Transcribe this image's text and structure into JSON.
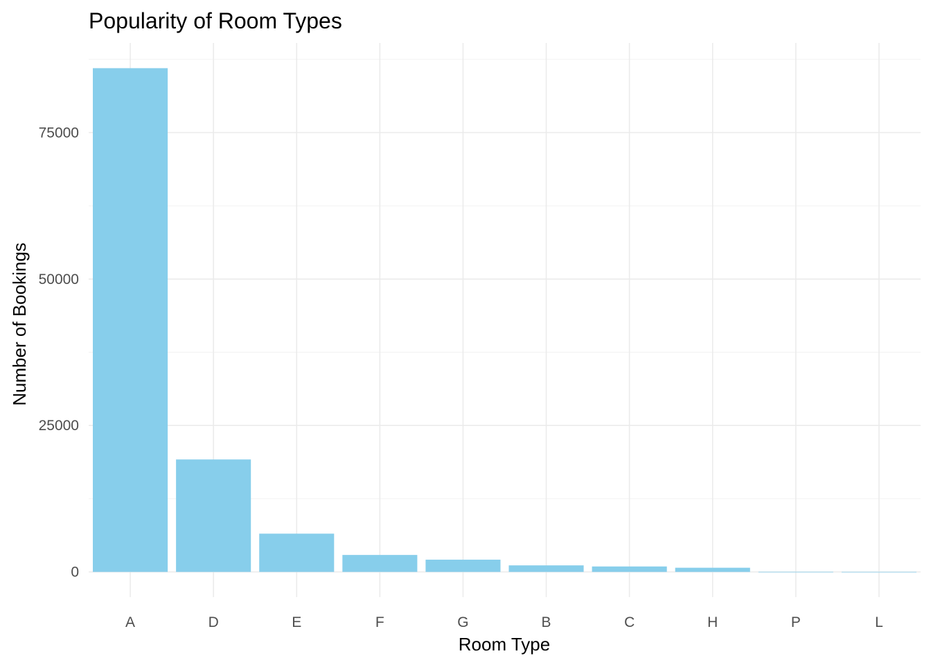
{
  "chart_data": {
    "type": "bar",
    "title": "Popularity of Room Types",
    "xlabel": "Room Type",
    "ylabel": "Number of Bookings",
    "categories": [
      "A",
      "D",
      "E",
      "F",
      "G",
      "B",
      "C",
      "H",
      "P",
      "L"
    ],
    "values": [
      85994,
      19201,
      6535,
      2897,
      2094,
      1118,
      932,
      712,
      12,
      6
    ],
    "ylim": [
      -4300,
      90300
    ],
    "yticks": [
      0,
      25000,
      50000,
      75000
    ],
    "yticks_minor": [
      12500,
      37500,
      62500,
      87500
    ],
    "bar_color": "#87CEEB",
    "grid": true,
    "legend": "none"
  }
}
